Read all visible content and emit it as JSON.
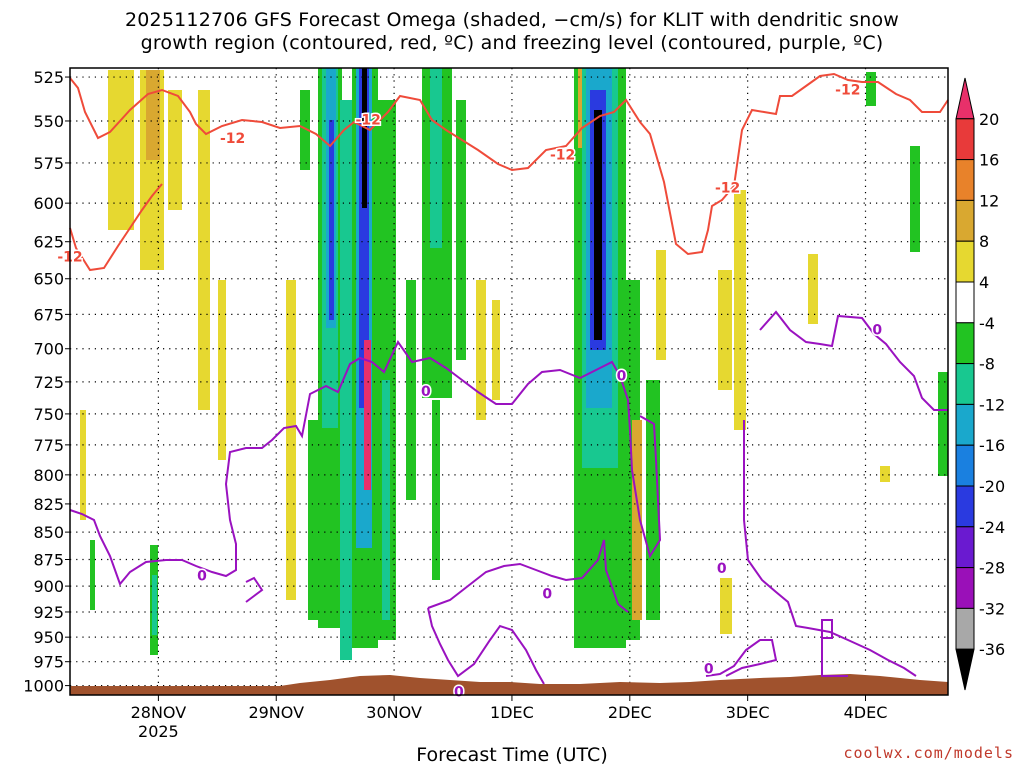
{
  "chart_data": {
    "type": "heatmap",
    "title": "2025112706 GFS Forecast Omega (shaded, −cm/s) for KLIT with dendritic snow",
    "subtitle": "growth region (contoured, red, ºC) and freezing level (contoured, purple, ºC)",
    "xlabel": "Forecast Time (UTC)",
    "ylabel": "",
    "credit": "coolwx.com/models",
    "x_ticks": [
      "28NOV",
      "29NOV",
      "30NOV",
      "1DEC",
      "2DEC",
      "3DEC",
      "4DEC"
    ],
    "x_tick_year": "2025",
    "y_ticks": [
      525,
      550,
      575,
      600,
      625,
      650,
      675,
      700,
      725,
      750,
      775,
      800,
      825,
      850,
      875,
      900,
      925,
      950,
      975,
      1000
    ],
    "ylim": [
      1010,
      520
    ],
    "y_scale": "log-pressure",
    "grid": true,
    "colorbar": {
      "labels": [
        "20",
        "16",
        "12",
        "8",
        "4",
        "-4",
        "-8",
        "-12",
        "-16",
        "-20",
        "-24",
        "-28",
        "-32",
        "-36"
      ],
      "colors": [
        "#e8306a",
        "#e83a3a",
        "#e8822a",
        "#d9a830",
        "#e6d830",
        "#ffffff",
        "#22c322",
        "#18c890",
        "#1aa8cc",
        "#1a80e0",
        "#2a3ae0",
        "#6a1ad0",
        "#9a10b8",
        "#a8a8a8",
        "#000000"
      ]
    },
    "contours": [
      {
        "name": "-12",
        "color": "#ef4b3a"
      },
      {
        "name": "0",
        "color": "#9a12c0"
      }
    ],
    "contour_labels": [
      {
        "text": "-12",
        "color": "#ef4b3a",
        "day": 27.25,
        "p": 635
      },
      {
        "text": "-12",
        "color": "#ef4b3a",
        "day": 28.63,
        "p": 560
      },
      {
        "text": "-12",
        "color": "#ef4b3a",
        "day": 29.78,
        "p": 549
      },
      {
        "text": "-12",
        "color": "#ef4b3a",
        "day": 31.43,
        "p": 570
      },
      {
        "text": "-12",
        "color": "#ef4b3a",
        "day": 32.83,
        "p": 590
      },
      {
        "text": "-12",
        "color": "#ef4b3a",
        "day": 33.85,
        "p": 532
      },
      {
        "text": "0",
        "color": "#9a12c0",
        "day": 28.37,
        "p": 890
      },
      {
        "text": "0",
        "color": "#9a12c0",
        "day": 30.27,
        "p": 732
      },
      {
        "text": "0",
        "color": "#9a12c0",
        "day": 31.3,
        "p": 907
      },
      {
        "text": "0",
        "color": "#9a12c0",
        "day": 31.93,
        "p": 720
      },
      {
        "text": "0",
        "color": "#9a12c0",
        "day": 30.55,
        "p": 1006
      },
      {
        "text": "0",
        "color": "#9a12c0",
        "day": 32.78,
        "p": 883
      },
      {
        "text": "0",
        "color": "#9a12c0",
        "day": 32.67,
        "p": 982
      },
      {
        "text": "0",
        "color": "#9a12c0",
        "day": 34.1,
        "p": 686
      }
    ]
  }
}
